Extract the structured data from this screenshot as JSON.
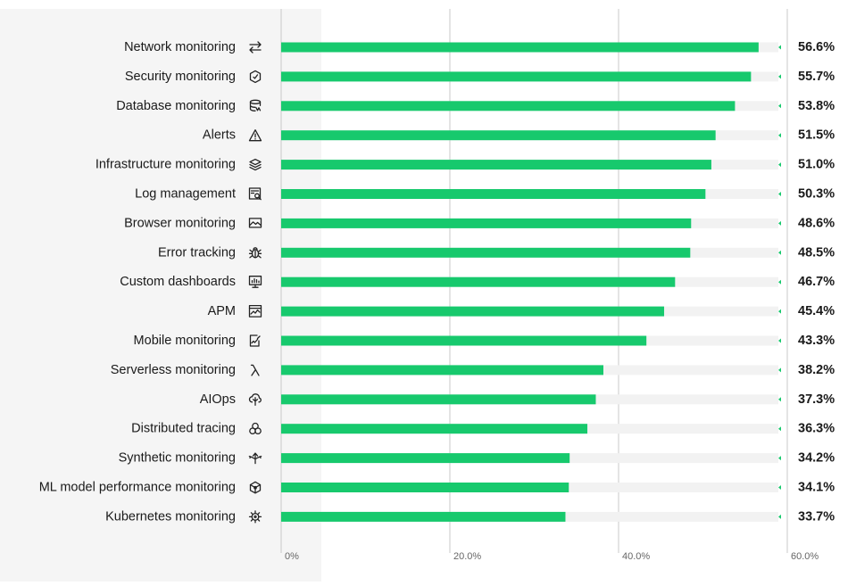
{
  "chart_data": {
    "type": "bar",
    "orientation": "horizontal",
    "title": "",
    "xlabel": "",
    "ylabel": "",
    "xlim": [
      0,
      60
    ],
    "x_ticks": [
      "0%",
      "20.0%",
      "40.0%",
      "60.0%"
    ],
    "x_tick_values": [
      0,
      20,
      40,
      60
    ],
    "grid": true,
    "bar_color": "#17c96d",
    "track_color": "#f2f2f2",
    "marker_color": "#17c96d",
    "categories": [
      "Network monitoring",
      "Security monitoring",
      "Database monitoring",
      "Alerts",
      "Infrastructure monitoring",
      "Log management",
      "Browser monitoring",
      "Error tracking",
      "Custom dashboards",
      "APM",
      "Mobile monitoring",
      "Serverless monitoring",
      "AIOps",
      "Distributed tracing",
      "Synthetic monitoring",
      "ML model performance monitoring",
      "Kubernetes monitoring"
    ],
    "icons": [
      "arrows-exchange-icon",
      "security-shield-icon",
      "database-icon",
      "alert-triangle-icon",
      "layers-icon",
      "log-search-icon",
      "browser-icon",
      "bug-icon",
      "dashboard-monitor-icon",
      "apm-chart-icon",
      "mobile-icon",
      "lambda-icon",
      "aiops-icon",
      "tracing-circles-icon",
      "synthetic-arrows-icon",
      "ml-model-icon",
      "kubernetes-helm-icon"
    ],
    "values": [
      56.6,
      55.7,
      53.8,
      51.5,
      51.0,
      50.3,
      48.6,
      48.5,
      46.7,
      45.4,
      43.3,
      38.2,
      37.3,
      36.3,
      34.2,
      34.1,
      33.7
    ],
    "value_labels": [
      "56.6%",
      "55.7%",
      "53.8%",
      "51.5%",
      "51.0%",
      "50.3%",
      "48.6%",
      "48.5%",
      "46.7%",
      "45.4%",
      "43.3%",
      "38.2%",
      "37.3%",
      "36.3%",
      "34.2%",
      "34.1%",
      "33.7%"
    ]
  }
}
